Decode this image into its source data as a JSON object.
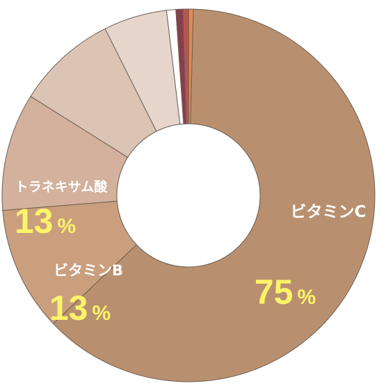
{
  "chart_data": {
    "type": "pie",
    "donut": true,
    "title": "",
    "categories": [
      "ビタミンC",
      "ビタミンB",
      "トラネキサム酸",
      "",
      "",
      "",
      "",
      "",
      ""
    ],
    "values": [
      62.5,
      10.8,
      10.2,
      8.7,
      5.5,
      0.8,
      0.6,
      0.5,
      0.4
    ],
    "printed_percent": [
      "75",
      "13",
      "13",
      "",
      "",
      "",
      "",
      "",
      ""
    ],
    "percent_unit": "%",
    "colors": [
      "#b9906f",
      "#ca9f7e",
      "#d3b19c",
      "#dcc4b5",
      "#e5d5cc",
      "#ffffff",
      "#893e4e",
      "#b9554e",
      "#e08a52"
    ],
    "start_angle_deg": 1.5,
    "legend": "none",
    "grid": false
  }
}
